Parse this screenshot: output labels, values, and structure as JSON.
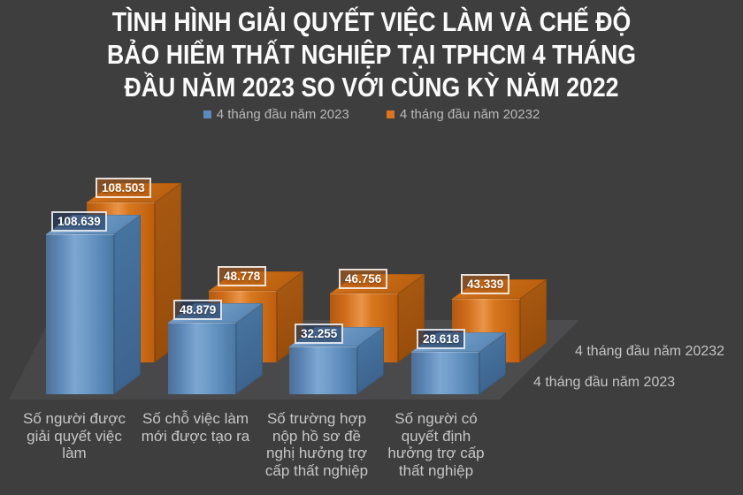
{
  "chart_data": {
    "type": "bar",
    "variant": "3d-clustered",
    "title": "TÌNH HÌNH GIẢI QUYẾT VIỆC LÀM VÀ CHẾ ĐỘ\nBẢO HIỂM THẤT NGHIỆP TẠI TPHCM 4 THÁNG\nĐẦU NĂM 2023 SO VỚI CÙNG KỲ NĂM 2022",
    "categories": [
      "Số người được giải quyết việc làm",
      "Số chỗ việc làm mới được tạo ra",
      "Số trường hợp nộp hồ sơ đề nghị hưởng trợ cấp thất nghiệp",
      "Số người có quyết định hưởng trợ cấp thất nghiệp"
    ],
    "series": [
      {
        "name": "4 tháng đầu năm 2023",
        "color": "#5b8abc",
        "values": [
          108639,
          48879,
          32255,
          28618
        ],
        "value_labels": [
          "108.639",
          "48.879",
          "32.255",
          "28.618"
        ]
      },
      {
        "name": "4 tháng đầu năm 20232",
        "color": "#dd751f",
        "values": [
          108503,
          48778,
          46756,
          43339
        ],
        "value_labels": [
          "108.503",
          "48.778",
          "46.756",
          "43.339"
        ]
      }
    ],
    "legend": [
      "4 tháng đầu năm 2023",
      "4 tháng đầu năm 20232"
    ],
    "legend_position": "top",
    "depth_axis_labels_right": [
      "4 tháng đầu năm 20232",
      "4 tháng đầu năm 2023"
    ],
    "value_labels_shown": true,
    "value_axis_visible": false,
    "gridlines": false,
    "colors": {
      "background": "#3e3e3e",
      "floor": "#49494a",
      "title_text": "#fbfbfb",
      "category_text": "#c6c6c6",
      "legend_text": "#b9b9b9",
      "value_label_text": "#ffffff"
    }
  }
}
